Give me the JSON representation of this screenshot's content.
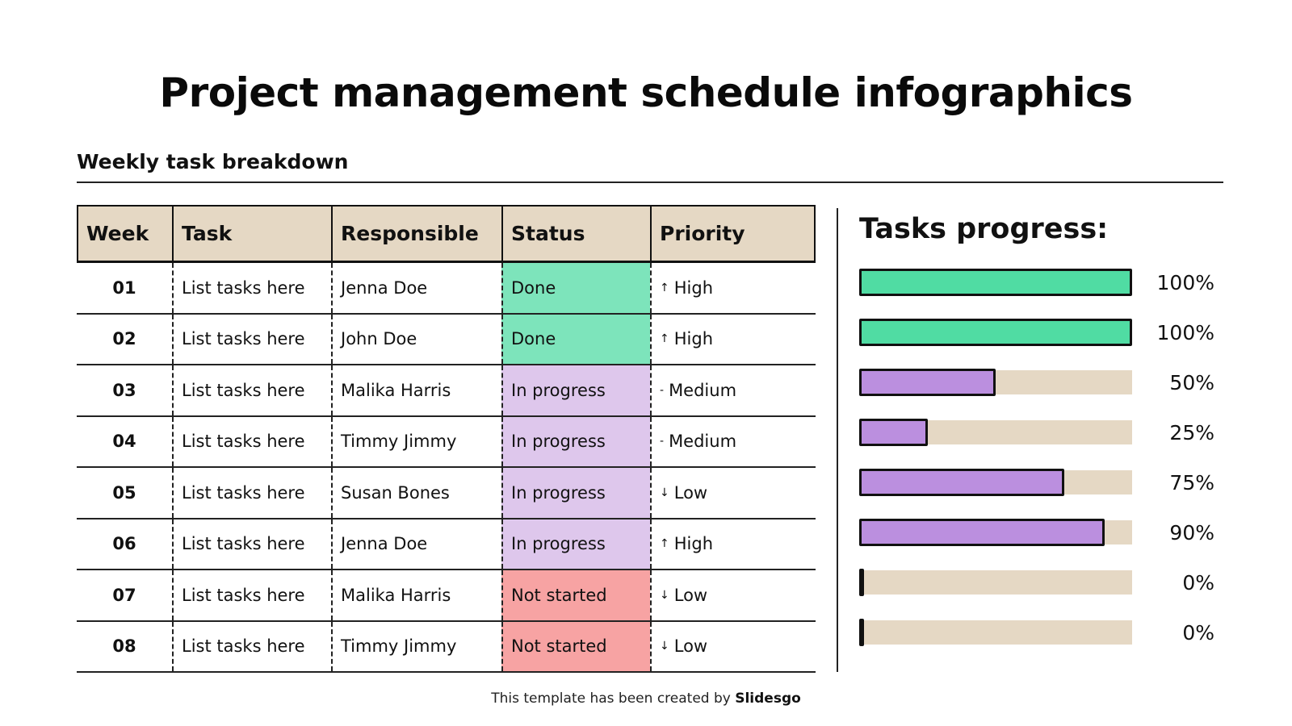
{
  "title": "Project management schedule infographics",
  "subtitle": "Weekly task breakdown",
  "table": {
    "headers": [
      "Week",
      "Task",
      "Responsible",
      "Status",
      "Priority"
    ],
    "rows": [
      {
        "week": "01",
        "task": "List tasks here",
        "responsible": "Jenna Doe",
        "status": "Done",
        "status_color": "#7de4bb",
        "priority_icon": "↑",
        "priority": "High"
      },
      {
        "week": "02",
        "task": "List tasks here",
        "responsible": "John Doe",
        "status": "Done",
        "status_color": "#7de4bb",
        "priority_icon": "↑",
        "priority": "High"
      },
      {
        "week": "03",
        "task": "List tasks here",
        "responsible": "Malika Harris",
        "status": "In progress",
        "status_color": "#dec7ec",
        "priority_icon": "-",
        "priority": "Medium"
      },
      {
        "week": "04",
        "task": "List tasks here",
        "responsible": "Timmy Jimmy",
        "status": "In progress",
        "status_color": "#dec7ec",
        "priority_icon": "-",
        "priority": "Medium"
      },
      {
        "week": "05",
        "task": "List tasks here",
        "responsible": "Susan Bones",
        "status": "In progress",
        "status_color": "#dec7ec",
        "priority_icon": "↓",
        "priority": "Low"
      },
      {
        "week": "06",
        "task": "List tasks here",
        "responsible": "Jenna Doe",
        "status": "In progress",
        "status_color": "#dec7ec",
        "priority_icon": "↑",
        "priority": "High"
      },
      {
        "week": "07",
        "task": "List tasks here",
        "responsible": "Malika Harris",
        "status": "Not started",
        "status_color": "#f7a3a3",
        "priority_icon": "↓",
        "priority": "Low"
      },
      {
        "week": "08",
        "task": "List tasks here",
        "responsible": "Timmy Jimmy",
        "status": "Not started",
        "status_color": "#f7a3a3",
        "priority_icon": "↓",
        "priority": "Low"
      }
    ]
  },
  "progress": {
    "title": "Tasks progress:",
    "track_color": "#e5d8c4",
    "bars": [
      {
        "value": 100,
        "label": "100%",
        "color": "#50dca3"
      },
      {
        "value": 100,
        "label": "100%",
        "color": "#50dca3"
      },
      {
        "value": 50,
        "label": "50%",
        "color": "#bb8fdf"
      },
      {
        "value": 25,
        "label": "25%",
        "color": "#bb8fdf"
      },
      {
        "value": 75,
        "label": "75%",
        "color": "#bb8fdf"
      },
      {
        "value": 90,
        "label": "90%",
        "color": "#bb8fdf"
      },
      {
        "value": 0,
        "label": "0%",
        "color": "#bb8fdf"
      },
      {
        "value": 0,
        "label": "0%",
        "color": "#bb8fdf"
      }
    ]
  },
  "footer": {
    "text": "This template has been created by ",
    "brand": "Slidesgo"
  }
}
